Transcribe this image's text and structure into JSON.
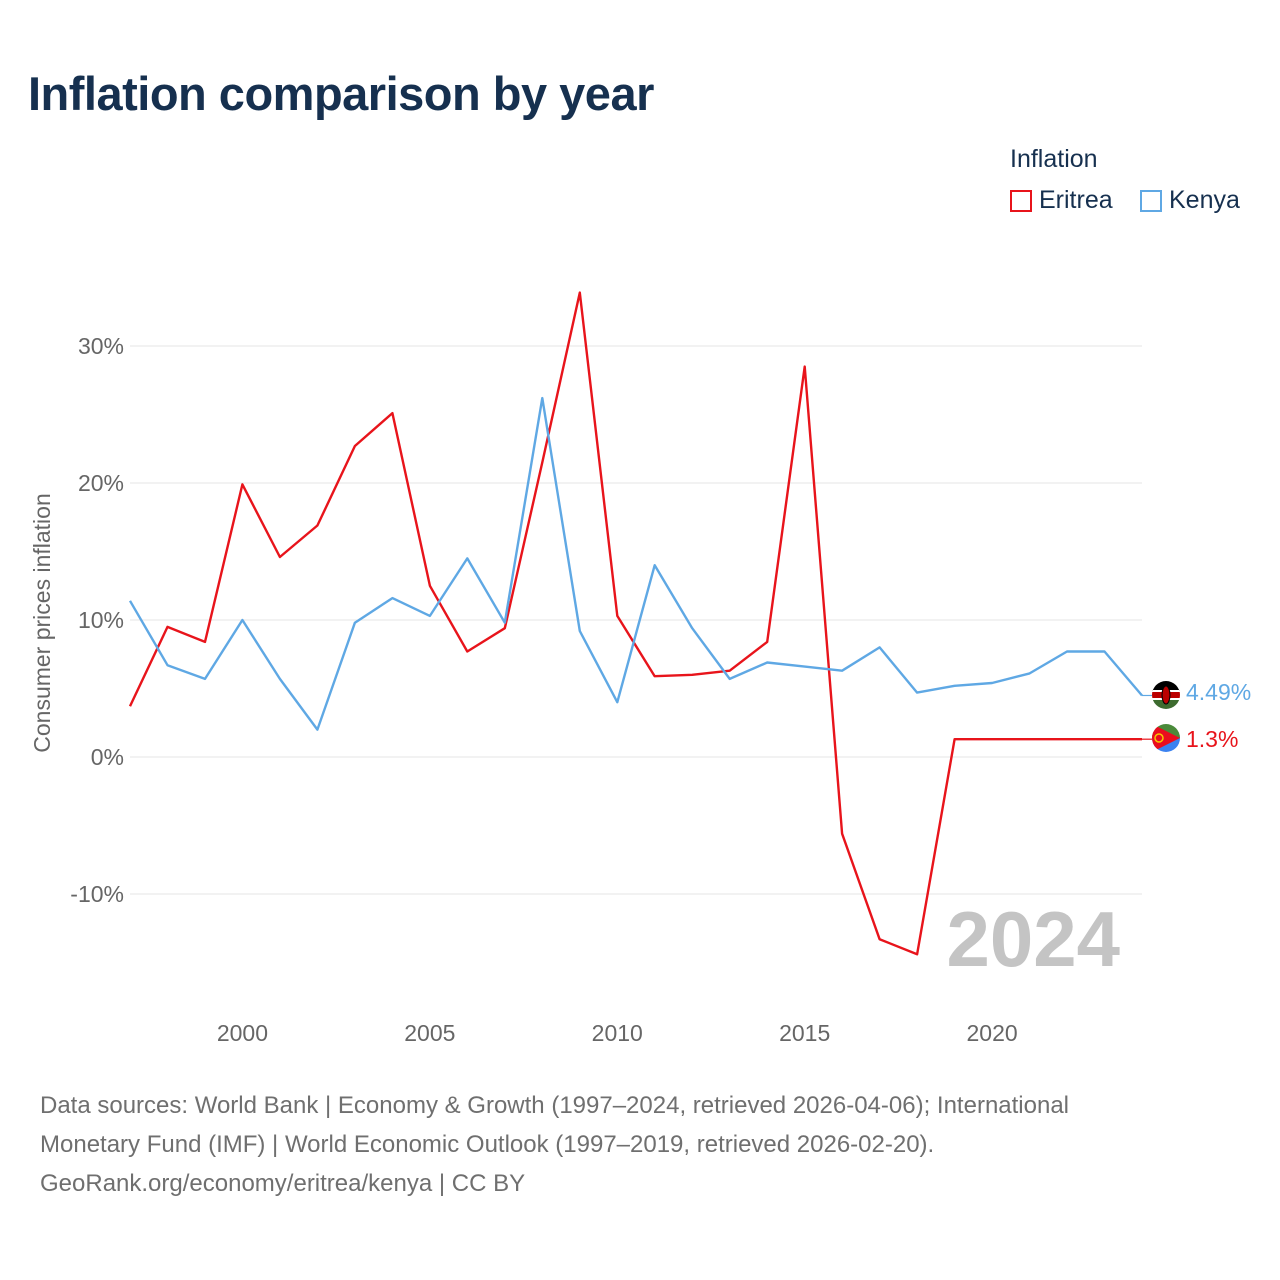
{
  "chart_data": {
    "type": "line",
    "title": "Inflation comparison by year",
    "legend_title": "Inflation",
    "ylabel": "Consumer prices inflation",
    "xlabel": "",
    "ylim": [
      -17,
      35
    ],
    "xlim": [
      1997,
      2024
    ],
    "y_ticks": [
      {
        "value": 30,
        "label": "30%"
      },
      {
        "value": 20,
        "label": "20%"
      },
      {
        "value": 10,
        "label": "10%"
      },
      {
        "value": 0,
        "label": "0%"
      },
      {
        "value": -10,
        "label": "-10%"
      }
    ],
    "x_ticks": [
      {
        "value": 2000,
        "label": "2000"
      },
      {
        "value": 2005,
        "label": "2005"
      },
      {
        "value": 2010,
        "label": "2010"
      },
      {
        "value": 2015,
        "label": "2015"
      },
      {
        "value": 2020,
        "label": "2020"
      }
    ],
    "year_watermark": "2024",
    "series": [
      {
        "name": "Eritrea",
        "color": "#e8141b",
        "flag_icon": "eritrea-flag-icon",
        "end_label": "1.3%",
        "x": [
          1997,
          1998,
          1999,
          2000,
          2001,
          2002,
          2003,
          2004,
          2005,
          2006,
          2007,
          2008,
          2009,
          2010,
          2011,
          2012,
          2013,
          2014,
          2015,
          2016,
          2017,
          2018,
          2019,
          2024
        ],
        "values": [
          3.7,
          9.5,
          8.4,
          19.9,
          14.6,
          16.9,
          22.7,
          25.1,
          12.5,
          7.7,
          9.4,
          21.5,
          33.9,
          10.3,
          5.9,
          6.0,
          6.3,
          8.4,
          28.5,
          -5.6,
          -13.3,
          -14.4,
          1.3,
          1.3
        ]
      },
      {
        "name": "Kenya",
        "color": "#5fa8e4",
        "flag_icon": "kenya-flag-icon",
        "end_label": "4.49%",
        "x": [
          1997,
          1998,
          1999,
          2000,
          2001,
          2002,
          2003,
          2004,
          2005,
          2006,
          2007,
          2008,
          2009,
          2010,
          2011,
          2012,
          2013,
          2014,
          2015,
          2016,
          2017,
          2018,
          2019,
          2020,
          2021,
          2022,
          2023,
          2024
        ],
        "values": [
          11.4,
          6.7,
          5.7,
          10.0,
          5.7,
          2.0,
          9.8,
          11.6,
          10.3,
          14.5,
          9.8,
          26.2,
          9.2,
          4.0,
          14.0,
          9.4,
          5.7,
          6.9,
          6.6,
          6.3,
          8.0,
          4.7,
          5.2,
          5.4,
          6.1,
          7.7,
          7.7,
          4.49
        ]
      }
    ],
    "source_lines": [
      "Data sources: World Bank | Economy & Growth (1997–2024, retrieved 2026-04-06); International",
      "Monetary Fund (IMF) | World Economic Outlook (1997–2019, retrieved 2026-02-20).",
      "GeoRank.org/economy/eritrea/kenya | CC BY"
    ]
  }
}
